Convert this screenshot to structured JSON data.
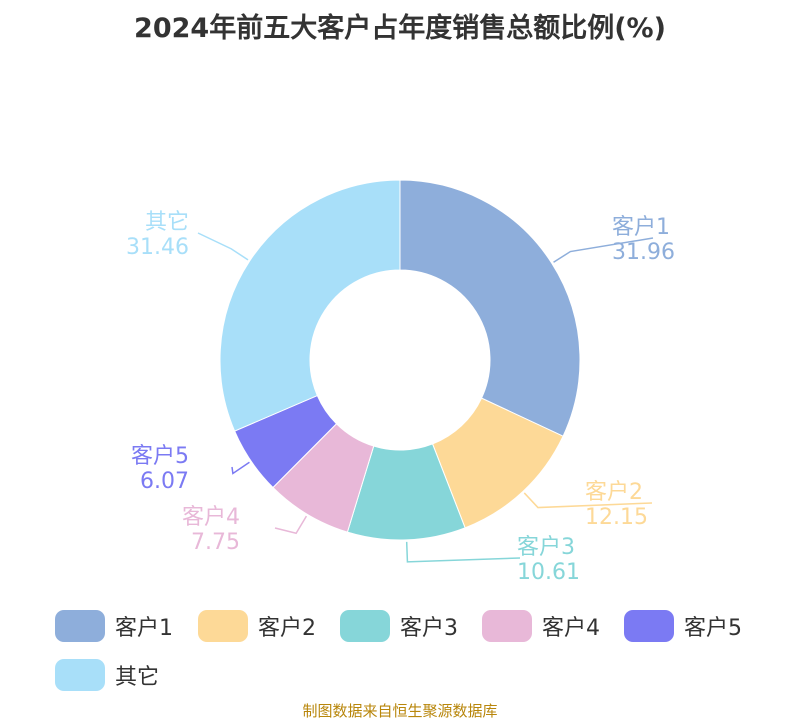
{
  "chart_data": {
    "type": "pie",
    "title": "2024年前五大客户占年度销售总额比例(%)",
    "categories": [
      "客户1",
      "客户2",
      "客户3",
      "客户4",
      "客户5",
      "其它"
    ],
    "values": [
      31.96,
      12.15,
      10.61,
      7.75,
      6.07,
      31.46
    ],
    "value_labels": [
      "31.96",
      "12.15",
      "10.61",
      "7.75",
      "6.07",
      "31.46"
    ],
    "colors": [
      "#8eaedb",
      "#fdd997",
      "#86d6d9",
      "#e8b8d8",
      "#7b7af3",
      "#a8dff9"
    ],
    "inner_radius_ratio": 0.5,
    "legend": "bottom"
  },
  "legend_items": [
    "客户1",
    "客户2",
    "客户3",
    "客户4",
    "客户5",
    "其它"
  ],
  "source_note": "制图数据来自恒生聚源数据库"
}
